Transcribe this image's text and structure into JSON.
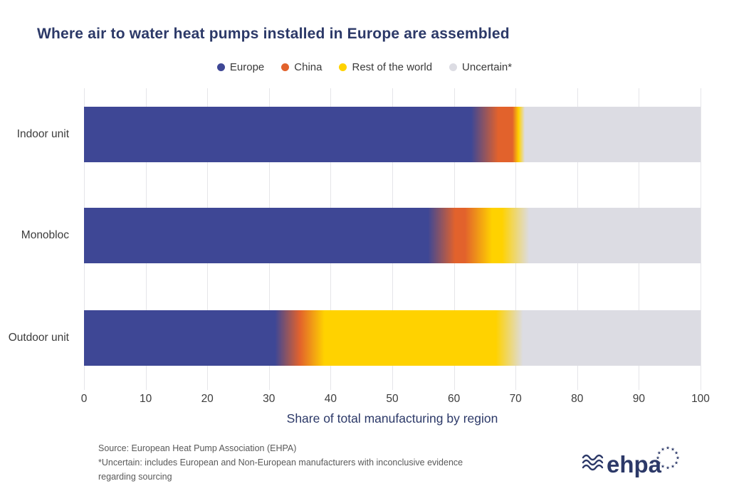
{
  "title": "Where air to water heat pumps installed in Europe are assembled",
  "chart_data": {
    "type": "bar",
    "orientation": "horizontal",
    "stacked": true,
    "title": "Where air to water heat pumps installed in Europe are assembled",
    "categories": [
      "Indoor unit",
      "Monobloc",
      "Outdoor unit"
    ],
    "series": [
      {
        "name": "Europe",
        "color": "#3e4795",
        "values": [
          65,
          58,
          33
        ]
      },
      {
        "name": "China",
        "color": "#e2622c",
        "values": [
          5,
          6,
          4
        ]
      },
      {
        "name": "Rest of the world",
        "color": "#ffd200",
        "values": [
          1,
          6,
          32
        ]
      },
      {
        "name": "Uncertain*",
        "color": "#dcdce3",
        "values": [
          29,
          30,
          31
        ]
      }
    ],
    "xlabel": "Share of total manufacturing by region",
    "ylabel": "",
    "xlim": [
      0,
      100
    ],
    "xticks": [
      0,
      10,
      20,
      30,
      40,
      50,
      60,
      70,
      80,
      90,
      100
    ],
    "grid": true,
    "legend_position": "top",
    "segment_blend_pct": 2.2
  },
  "footer": {
    "source": "Source: European Heat Pump Association (EHPA)",
    "note_line1": "*Uncertain: includes European and Non-European manufacturers with inconclusive evidence",
    "note_line2": "regarding sourcing"
  },
  "logo": {
    "text": "ehpa",
    "star": "★"
  },
  "colors": {
    "title_navy": "#2c3968",
    "gridline": "#e5e5e9",
    "tick_text": "#3c3c3c",
    "footer_text": "#595959",
    "background": "#ffffff"
  }
}
